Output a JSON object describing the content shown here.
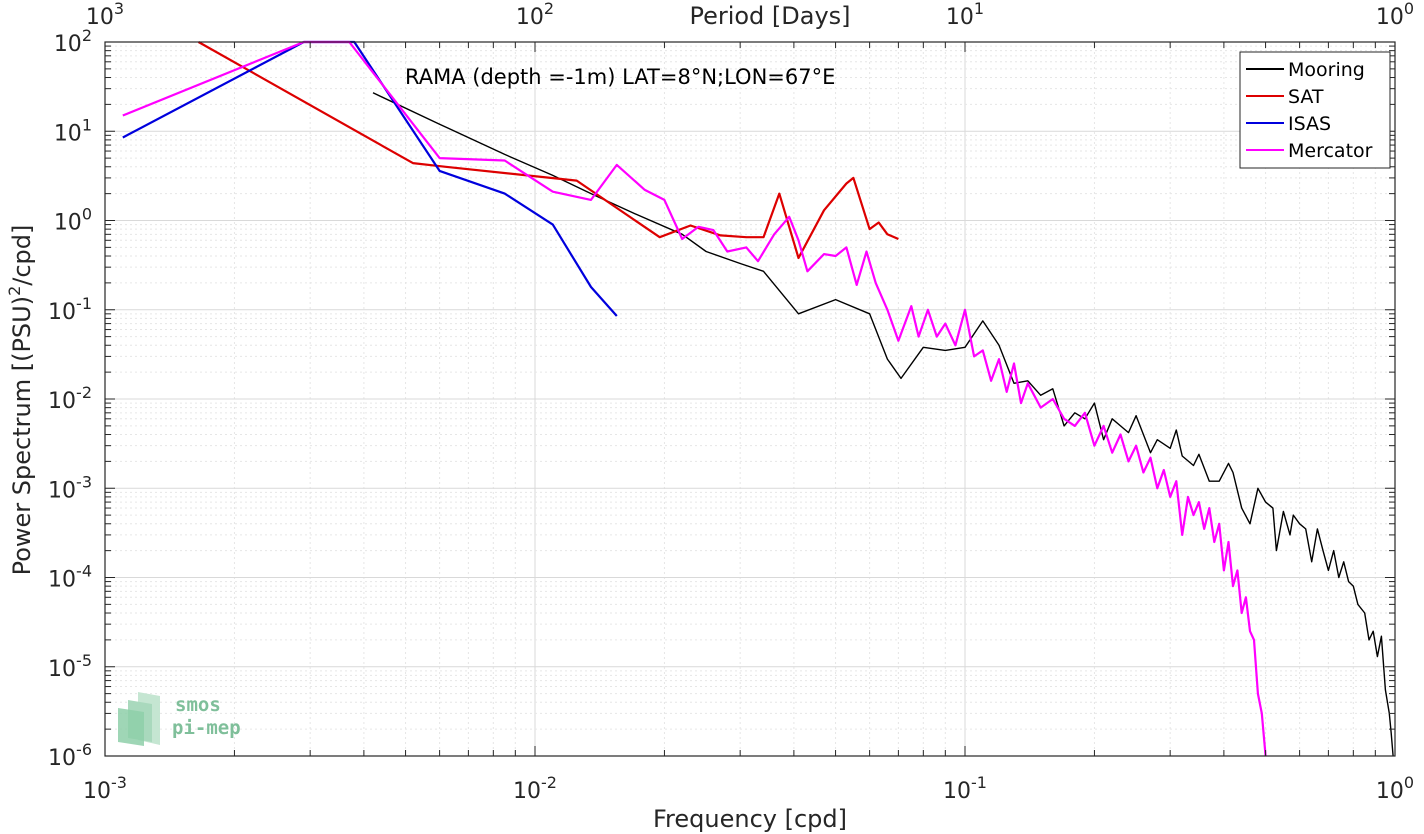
{
  "chart_data": {
    "type": "line",
    "title": "RAMA (depth =-1m) LAT=8°N;LON=67°E",
    "xlabel": "Frequency [cpd]",
    "ylabel_main": "Power Spectrum [(PSU)",
    "ylabel_sup": "2",
    "ylabel_tail": "/cpd]",
    "top_xlabel": "Period [Days]",
    "x_scale": "log",
    "y_scale": "log",
    "xlim": [
      0.001,
      1
    ],
    "ylim": [
      1e-06,
      100
    ],
    "grid": true,
    "legend_position": "top-right",
    "x_ticks": [
      {
        "value": 0.001,
        "base": "10",
        "exp": "-3"
      },
      {
        "value": 0.01,
        "base": "10",
        "exp": "-2"
      },
      {
        "value": 0.1,
        "base": "10",
        "exp": "-1"
      },
      {
        "value": 1,
        "base": "10",
        "exp": "0"
      }
    ],
    "top_x_ticks": [
      {
        "value": 0.001,
        "base": "10",
        "exp": "3"
      },
      {
        "value": 0.01,
        "base": "10",
        "exp": "2"
      },
      {
        "value": 0.1,
        "base": "10",
        "exp": "1"
      },
      {
        "value": 1,
        "base": "10",
        "exp": "0"
      }
    ],
    "y_ticks": [
      {
        "value": 100,
        "base": "10",
        "exp": "2"
      },
      {
        "value": 10,
        "base": "10",
        "exp": "1"
      },
      {
        "value": 1,
        "base": "10",
        "exp": "0"
      },
      {
        "value": 0.1,
        "base": "10",
        "exp": "-1"
      },
      {
        "value": 0.01,
        "base": "10",
        "exp": "-2"
      },
      {
        "value": 0.001,
        "base": "10",
        "exp": "-3"
      },
      {
        "value": 0.0001,
        "base": "10",
        "exp": "-4"
      },
      {
        "value": 1e-05,
        "base": "10",
        "exp": "-5"
      },
      {
        "value": 1e-06,
        "base": "10",
        "exp": "-6"
      }
    ],
    "series": [
      {
        "name": "Mooring",
        "color": "#000000",
        "points": [
          [
            0.0042,
            27
          ],
          [
            0.006,
            12
          ],
          [
            0.0085,
            5.5
          ],
          [
            0.011,
            3.2
          ],
          [
            0.0135,
            2.0
          ],
          [
            0.017,
            1.2
          ],
          [
            0.022,
            0.7
          ],
          [
            0.025,
            0.45
          ],
          [
            0.03,
            0.33
          ],
          [
            0.034,
            0.27
          ],
          [
            0.041,
            0.09
          ],
          [
            0.05,
            0.13
          ],
          [
            0.06,
            0.09
          ],
          [
            0.066,
            0.028
          ],
          [
            0.071,
            0.017
          ],
          [
            0.08,
            0.038
          ],
          [
            0.09,
            0.035
          ],
          [
            0.1,
            0.038
          ],
          [
            0.11,
            0.075
          ],
          [
            0.12,
            0.04
          ],
          [
            0.13,
            0.015
          ],
          [
            0.14,
            0.016
          ],
          [
            0.15,
            0.011
          ],
          [
            0.16,
            0.013
          ],
          [
            0.17,
            0.005
          ],
          [
            0.18,
            0.007
          ],
          [
            0.19,
            0.006
          ],
          [
            0.2,
            0.009
          ],
          [
            0.21,
            0.0035
          ],
          [
            0.22,
            0.006
          ],
          [
            0.23,
            0.005
          ],
          [
            0.24,
            0.0042
          ],
          [
            0.25,
            0.0065
          ],
          [
            0.26,
            0.004
          ],
          [
            0.27,
            0.0025
          ],
          [
            0.28,
            0.0035
          ],
          [
            0.3,
            0.0028
          ],
          [
            0.31,
            0.0045
          ],
          [
            0.32,
            0.0023
          ],
          [
            0.34,
            0.0018
          ],
          [
            0.35,
            0.0024
          ],
          [
            0.37,
            0.0012
          ],
          [
            0.39,
            0.0012
          ],
          [
            0.41,
            0.0019
          ],
          [
            0.42,
            0.0015
          ],
          [
            0.44,
            0.0006
          ],
          [
            0.46,
            0.0004
          ],
          [
            0.48,
            0.001
          ],
          [
            0.5,
            0.0007
          ],
          [
            0.52,
            0.0006
          ],
          [
            0.53,
            0.0002
          ],
          [
            0.55,
            0.00055
          ],
          [
            0.57,
            0.0003
          ],
          [
            0.58,
            0.0005
          ],
          [
            0.6,
            0.0004
          ],
          [
            0.62,
            0.00035
          ],
          [
            0.64,
            0.00015
          ],
          [
            0.66,
            0.00035
          ],
          [
            0.68,
            0.0002
          ],
          [
            0.7,
            0.00012
          ],
          [
            0.72,
            0.0002
          ],
          [
            0.74,
            0.0001
          ],
          [
            0.76,
            0.00015
          ],
          [
            0.78,
            9e-05
          ],
          [
            0.8,
            8e-05
          ],
          [
            0.82,
            5e-05
          ],
          [
            0.85,
            4e-05
          ],
          [
            0.87,
            2e-05
          ],
          [
            0.89,
            2.5e-05
          ],
          [
            0.91,
            1.3e-05
          ],
          [
            0.93,
            2.2e-05
          ],
          [
            0.95,
            5.5e-06
          ],
          [
            0.97,
            3e-06
          ],
          [
            0.98,
            1.8e-06
          ],
          [
            0.99,
            1e-06
          ]
        ]
      },
      {
        "name": "SAT",
        "color": "#dd0000",
        "points": [
          [
            0.00165,
            100
          ],
          [
            0.0052,
            4.4
          ],
          [
            0.0062,
            4.0
          ],
          [
            0.0125,
            2.8
          ],
          [
            0.0195,
            0.65
          ],
          [
            0.023,
            0.88
          ],
          [
            0.027,
            0.68
          ],
          [
            0.031,
            0.65
          ],
          [
            0.034,
            0.65
          ],
          [
            0.037,
            2.0
          ],
          [
            0.041,
            0.38
          ],
          [
            0.047,
            1.3
          ],
          [
            0.053,
            2.6
          ],
          [
            0.055,
            3.0
          ],
          [
            0.06,
            0.8
          ],
          [
            0.063,
            0.95
          ],
          [
            0.066,
            0.7
          ],
          [
            0.07,
            0.62
          ]
        ]
      },
      {
        "name": "ISAS",
        "color": "#0000dd",
        "points": [
          [
            0.0011,
            8.5
          ],
          [
            0.0029,
            100
          ],
          [
            0.0038,
            100
          ],
          [
            0.006,
            3.6
          ],
          [
            0.0085,
            2.0
          ],
          [
            0.011,
            0.9
          ],
          [
            0.0135,
            0.18
          ],
          [
            0.0155,
            0.085
          ]
        ]
      },
      {
        "name": "Mercator",
        "color": "#ff00ff",
        "points": [
          [
            0.0011,
            15
          ],
          [
            0.0029,
            100
          ],
          [
            0.0037,
            100
          ],
          [
            0.006,
            5.0
          ],
          [
            0.0085,
            4.7
          ],
          [
            0.011,
            2.1
          ],
          [
            0.0135,
            1.7
          ],
          [
            0.0155,
            4.2
          ],
          [
            0.018,
            2.2
          ],
          [
            0.02,
            1.7
          ],
          [
            0.022,
            0.62
          ],
          [
            0.024,
            0.85
          ],
          [
            0.026,
            0.78
          ],
          [
            0.028,
            0.45
          ],
          [
            0.031,
            0.5
          ],
          [
            0.033,
            0.35
          ],
          [
            0.036,
            0.7
          ],
          [
            0.039,
            1.1
          ],
          [
            0.041,
            0.6
          ],
          [
            0.043,
            0.27
          ],
          [
            0.047,
            0.42
          ],
          [
            0.05,
            0.4
          ],
          [
            0.053,
            0.5
          ],
          [
            0.056,
            0.19
          ],
          [
            0.059,
            0.45
          ],
          [
            0.062,
            0.2
          ],
          [
            0.066,
            0.1
          ],
          [
            0.07,
            0.045
          ],
          [
            0.075,
            0.11
          ],
          [
            0.078,
            0.05
          ],
          [
            0.082,
            0.1
          ],
          [
            0.086,
            0.05
          ],
          [
            0.09,
            0.07
          ],
          [
            0.095,
            0.04
          ],
          [
            0.1,
            0.1
          ],
          [
            0.105,
            0.03
          ],
          [
            0.11,
            0.035
          ],
          [
            0.115,
            0.016
          ],
          [
            0.12,
            0.028
          ],
          [
            0.125,
            0.012
          ],
          [
            0.13,
            0.025
          ],
          [
            0.135,
            0.009
          ],
          [
            0.14,
            0.015
          ],
          [
            0.15,
            0.008
          ],
          [
            0.16,
            0.01
          ],
          [
            0.17,
            0.006
          ],
          [
            0.18,
            0.005
          ],
          [
            0.19,
            0.007
          ],
          [
            0.2,
            0.003
          ],
          [
            0.21,
            0.005
          ],
          [
            0.22,
            0.0025
          ],
          [
            0.23,
            0.004
          ],
          [
            0.24,
            0.002
          ],
          [
            0.25,
            0.003
          ],
          [
            0.26,
            0.0015
          ],
          [
            0.27,
            0.0022
          ],
          [
            0.28,
            0.001
          ],
          [
            0.29,
            0.0016
          ],
          [
            0.3,
            0.0008
          ],
          [
            0.31,
            0.0012
          ],
          [
            0.32,
            0.0003
          ],
          [
            0.33,
            0.0008
          ],
          [
            0.34,
            0.0005
          ],
          [
            0.35,
            0.0007
          ],
          [
            0.36,
            0.00035
          ],
          [
            0.37,
            0.0006
          ],
          [
            0.38,
            0.00025
          ],
          [
            0.39,
            0.0004
          ],
          [
            0.4,
            0.00012
          ],
          [
            0.41,
            0.00025
          ],
          [
            0.42,
            8e-05
          ],
          [
            0.43,
            0.00012
          ],
          [
            0.44,
            4e-05
          ],
          [
            0.45,
            6e-05
          ],
          [
            0.46,
            2.5e-05
          ],
          [
            0.47,
            2e-05
          ],
          [
            0.48,
            5e-06
          ],
          [
            0.49,
            3e-06
          ],
          [
            0.5,
            1e-06
          ]
        ]
      }
    ],
    "logo": {
      "line1": "smos",
      "line2": "pi-mep"
    }
  }
}
